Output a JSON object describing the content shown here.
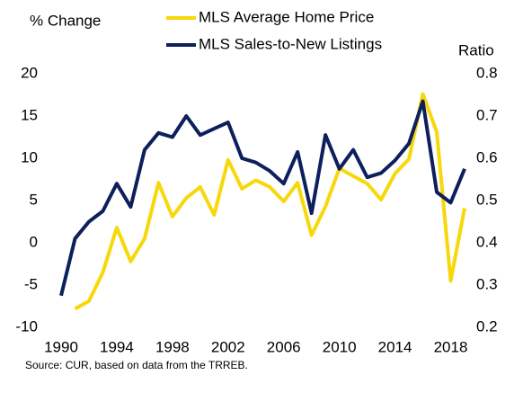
{
  "chart_data": {
    "type": "line",
    "y_label": "% Change",
    "y2_label": "Ratio",
    "source": "Source: CUR, based on data from the TRREB.",
    "x": [
      1990,
      1991,
      1992,
      1993,
      1994,
      1995,
      1996,
      1997,
      1998,
      1999,
      2000,
      2001,
      2002,
      2003,
      2004,
      2005,
      2006,
      2007,
      2008,
      2009,
      2010,
      2011,
      2012,
      2013,
      2014,
      2015,
      2016,
      2017,
      2018,
      2019
    ],
    "series": [
      {
        "name": "MLS Average Home Price",
        "color": "#f7d80a",
        "values": [
          null,
          -7.8,
          -6.9,
          -3.5,
          1.8,
          -2.2,
          0.5,
          7.1,
          3.1,
          5.3,
          6.6,
          3.3,
          9.8,
          6.4,
          7.4,
          6.6,
          4.9,
          7.1,
          0.9,
          4.3,
          8.8,
          7.9,
          7.0,
          5.1,
          8.2,
          9.9,
          17.6,
          13.1,
          -4.5,
          4.1
        ]
      },
      {
        "name": "MLS Sales-to-New Listings",
        "color": "#0d1f5c",
        "axis": "y2",
        "values": [
          0.275,
          0.41,
          0.45,
          0.475,
          0.54,
          0.485,
          0.62,
          0.66,
          0.65,
          0.7,
          0.655,
          0.67,
          0.685,
          0.6,
          0.59,
          0.57,
          0.54,
          0.615,
          0.47,
          0.655,
          0.575,
          0.62,
          0.555,
          0.565,
          0.595,
          0.635,
          0.735,
          0.52,
          0.495,
          0.575
        ]
      }
    ],
    "xlim": [
      1990,
      2019
    ],
    "xticks": [
      1990,
      1994,
      1998,
      2002,
      2006,
      2010,
      2014,
      2018
    ],
    "ylim": [
      -10,
      20
    ],
    "yticks": [
      -10,
      -5,
      0,
      5,
      10,
      15,
      20
    ],
    "y2lim": [
      0.2,
      0.8
    ],
    "y2ticks": [
      0.2,
      0.3,
      0.4,
      0.5,
      0.6,
      0.7,
      0.8
    ]
  }
}
